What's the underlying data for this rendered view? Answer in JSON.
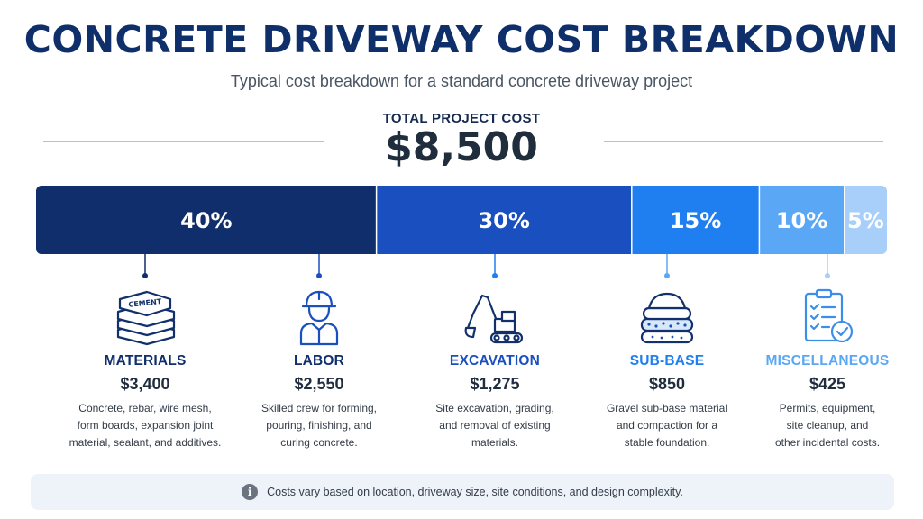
{
  "title": "CONCRETE DRIVEWAY COST BREAKDOWN",
  "subtitle": "Typical cost breakdown for a standard concrete driveway project",
  "total": {
    "label": "TOTAL PROJECT COST",
    "value": "$8,500"
  },
  "chart_data": {
    "type": "bar",
    "orientation": "horizontal-stacked",
    "title": "CONCRETE DRIVEWAY COST BREAKDOWN",
    "categories": [
      "MATERIALS",
      "LABOR",
      "EXCAVATION",
      "SUB-BASE",
      "MISCELLANEOUS"
    ],
    "values": [
      40,
      30,
      15,
      10,
      5
    ],
    "labels": [
      "40%",
      "30%",
      "15%",
      "10%",
      "5%"
    ],
    "costs": [
      "$3,400",
      "$2,550",
      "$1,275",
      "$850",
      "$425"
    ],
    "colors": [
      "#0f2e6b",
      "#1a4fc0",
      "#1f7ff0",
      "#5aa8f5",
      "#a8cff9"
    ],
    "name_colors": [
      "#0f2e6b",
      "#0f2e6b",
      "#1a4fc0",
      "#1f7ff0",
      "#5aa8f5"
    ]
  },
  "segments": [
    {
      "name": "MATERIALS",
      "cost": "$3,400",
      "desc": [
        "Concrete, rebar, wire mesh,",
        "form boards, expansion joint",
        "material, sealant, and additives."
      ],
      "icon": "cement-bags-icon"
    },
    {
      "name": "LABOR",
      "cost": "$2,550",
      "desc": [
        "Skilled crew for forming,",
        "pouring, finishing, and",
        "curing concrete."
      ],
      "icon": "worker-icon"
    },
    {
      "name": "EXCAVATION",
      "cost": "$1,275",
      "desc": [
        "Site excavation, grading,",
        "and removal of existing",
        "materials."
      ],
      "icon": "excavator-icon"
    },
    {
      "name": "SUB-BASE",
      "cost": "$850",
      "desc": [
        "Gravel sub-base material",
        "and compaction for a",
        "stable foundation."
      ],
      "icon": "gravel-layers-icon"
    },
    {
      "name": "MISCELLANEOUS",
      "cost": "$425",
      "desc": [
        "Permits, equipment,",
        "site cleanup, and",
        "other incidental costs."
      ],
      "icon": "clipboard-check-icon"
    }
  ],
  "footer": {
    "icon": "info-icon",
    "text": "Costs vary based on location, driveway size, site conditions, and design complexity."
  }
}
